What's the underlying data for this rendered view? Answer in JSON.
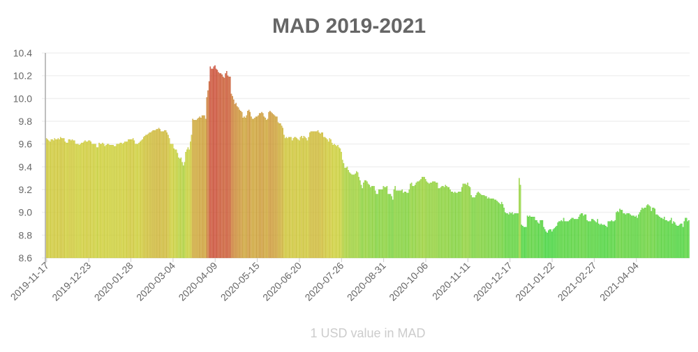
{
  "chart_data": {
    "type": "bar",
    "title": "MAD 2019-2021",
    "xlabel": "1 USD value in MAD",
    "ylabel": "",
    "ylim": [
      8.6,
      10.4
    ],
    "yticks": [
      "8.6",
      "8.8",
      "9.0",
      "9.2",
      "9.4",
      "9.6",
      "9.8",
      "10.0",
      "10.2",
      "10.4"
    ],
    "xtick_labels": [
      "2019-11-17",
      "2019-12-23",
      "2020-01-28",
      "2020-03-04",
      "2020-04-09",
      "2020-05-15",
      "2020-06-20",
      "2020-07-26",
      "2020-08-31",
      "2020-10-06",
      "2020-11-11",
      "2020-12-17",
      "2021-01-22",
      "2021-02-27",
      "2021-04-04"
    ],
    "xtick_every_bars": 36,
    "grid": true,
    "legend": "none",
    "colors": {
      "low": "#3ddc3d",
      "high": "#d9432b",
      "title": "#666666",
      "axis_title": "#cccccc"
    },
    "values": [
      9.65,
      9.64,
      9.63,
      9.62,
      9.64,
      9.64,
      9.63,
      9.65,
      9.64,
      9.64,
      9.65,
      9.64,
      9.66,
      9.65,
      9.65,
      9.65,
      9.62,
      9.61,
      9.61,
      9.64,
      9.64,
      9.63,
      9.64,
      9.63,
      9.63,
      9.6,
      9.6,
      9.6,
      9.59,
      9.6,
      9.61,
      9.61,
      9.62,
      9.63,
      9.62,
      9.62,
      9.63,
      9.63,
      9.62,
      9.6,
      9.6,
      9.6,
      9.6,
      9.57,
      9.57,
      9.61,
      9.6,
      9.6,
      9.61,
      9.6,
      9.58,
      9.59,
      9.6,
      9.6,
      9.59,
      9.59,
      9.59,
      9.59,
      9.58,
      9.58,
      9.6,
      9.6,
      9.6,
      9.61,
      9.61,
      9.6,
      9.61,
      9.62,
      9.62,
      9.62,
      9.64,
      9.64,
      9.64,
      9.64,
      9.65,
      9.63,
      9.6,
      9.6,
      9.6,
      9.61,
      9.62,
      9.63,
      9.64,
      9.66,
      9.67,
      9.68,
      9.68,
      9.69,
      9.7,
      9.7,
      9.71,
      9.72,
      9.72,
      9.72,
      9.73,
      9.73,
      9.74,
      9.73,
      9.71,
      9.71,
      9.71,
      9.72,
      9.72,
      9.7,
      9.68,
      9.65,
      9.6,
      9.6,
      9.6,
      9.56,
      9.55,
      9.55,
      9.52,
      9.48,
      9.47,
      9.48,
      9.44,
      9.41,
      9.44,
      9.53,
      9.55,
      9.57,
      9.55,
      9.62,
      9.68,
      9.82,
      9.81,
      9.81,
      9.81,
      9.82,
      9.83,
      9.84,
      9.83,
      9.85,
      9.85,
      9.85,
      9.82,
      10.01,
      10.07,
      10.15,
      10.28,
      10.26,
      10.26,
      10.28,
      10.29,
      10.26,
      10.25,
      10.23,
      10.22,
      10.22,
      10.21,
      10.19,
      10.18,
      10.22,
      10.24,
      10.2,
      10.19,
      10.19,
      10.04,
      10.02,
      9.99,
      9.95,
      9.96,
      9.93,
      9.92,
      9.9,
      9.89,
      9.88,
      9.83,
      9.84,
      9.83,
      9.85,
      9.89,
      9.9,
      9.88,
      9.84,
      9.82,
      9.82,
      9.83,
      9.84,
      9.84,
      9.85,
      9.87,
      9.87,
      9.88,
      9.87,
      9.84,
      9.83,
      9.81,
      9.82,
      9.88,
      9.89,
      9.88,
      9.87,
      9.86,
      9.85,
      9.84,
      9.84,
      9.79,
      9.78,
      9.78,
      9.76,
      9.74,
      9.68,
      9.65,
      9.66,
      9.65,
      9.66,
      9.66,
      9.66,
      9.63,
      9.65,
      9.66,
      9.66,
      9.65,
      9.64,
      9.63,
      9.66,
      9.67,
      9.65,
      9.67,
      9.66,
      9.65,
      9.63,
      9.66,
      9.7,
      9.71,
      9.71,
      9.71,
      9.71,
      9.71,
      9.71,
      9.72,
      9.7,
      9.69,
      9.7,
      9.7,
      9.66,
      9.66,
      9.65,
      9.64,
      9.62,
      9.65,
      9.64,
      9.61,
      9.59,
      9.6,
      9.59,
      9.58,
      9.59,
      9.57,
      9.56,
      9.53,
      9.46,
      9.43,
      9.39,
      9.39,
      9.4,
      9.37,
      9.35,
      9.34,
      9.33,
      9.33,
      9.33,
      9.34,
      9.36,
      9.35,
      9.31,
      9.28,
      9.24,
      9.21,
      9.26,
      9.28,
      9.28,
      9.27,
      9.25,
      9.24,
      9.22,
      9.23,
      9.23,
      9.23,
      9.19,
      9.16,
      9.16,
      9.2,
      9.2,
      9.2,
      9.2,
      9.23,
      9.22,
      9.22,
      9.23,
      9.16,
      9.16,
      9.16,
      9.14,
      9.11,
      9.2,
      9.23,
      9.19,
      9.19,
      9.19,
      9.19,
      9.19,
      9.2,
      9.17,
      9.18,
      9.18,
      9.17,
      9.17,
      9.2,
      9.25,
      9.26,
      9.23,
      9.23,
      9.24,
      9.26,
      9.27,
      9.27,
      9.28,
      9.29,
      9.31,
      9.31,
      9.31,
      9.29,
      9.27,
      9.26,
      9.25,
      9.26,
      9.26,
      9.27,
      9.27,
      9.27,
      9.26,
      9.26,
      9.21,
      9.21,
      9.22,
      9.23,
      9.23,
      9.22,
      9.24,
      9.23,
      9.22,
      9.22,
      9.2,
      9.18,
      9.18,
      9.17,
      9.18,
      9.17,
      9.17,
      9.18,
      9.18,
      9.18,
      9.22,
      9.25,
      9.25,
      9.25,
      9.24,
      9.26,
      9.23,
      9.22,
      9.15,
      9.13,
      9.13,
      9.13,
      9.15,
      9.17,
      9.18,
      9.17,
      9.16,
      9.15,
      9.15,
      9.15,
      9.14,
      9.14,
      9.12,
      9.13,
      9.12,
      9.12,
      9.12,
      9.12,
      9.11,
      9.11,
      9.1,
      9.09,
      9.08,
      9.07,
      9.09,
      9.07,
      9.04,
      9.0,
      8.99,
      8.99,
      8.98,
      9.0,
      8.99,
      9.0,
      8.98,
      8.99,
      8.99,
      8.99,
      8.99,
      9.3,
      9.24,
      8.89,
      8.88,
      8.87,
      8.87,
      8.87,
      8.97,
      8.96,
      8.97,
      8.96,
      8.96,
      8.96,
      8.96,
      8.93,
      8.93,
      8.91,
      8.9,
      8.93,
      8.93,
      8.93,
      8.87,
      8.85,
      8.83,
      8.82,
      8.84,
      8.85,
      8.85,
      8.83,
      8.85,
      8.86,
      8.87,
      8.88,
      8.91,
      8.92,
      8.92,
      8.93,
      8.92,
      8.95,
      8.92,
      8.92,
      8.92,
      8.92,
      8.93,
      8.94,
      8.95,
      8.95,
      8.94,
      8.94,
      8.94,
      8.94,
      8.96,
      8.98,
      8.99,
      8.99,
      8.97,
      8.98,
      8.98,
      8.93,
      8.92,
      8.92,
      8.92,
      8.94,
      8.94,
      8.93,
      8.92,
      8.91,
      8.94,
      8.9,
      8.89,
      8.9,
      8.89,
      8.89,
      8.89,
      8.88,
      8.87,
      8.92,
      8.92,
      8.92,
      8.93,
      8.92,
      8.92,
      8.93,
      9.0,
      9.01,
      9.0,
      9.03,
      9.02,
      9.02,
      8.99,
      8.99,
      8.98,
      8.99,
      8.99,
      8.99,
      8.98,
      8.97,
      8.97,
      8.97,
      8.96,
      8.97,
      8.95,
      8.98,
      9.0,
      9.02,
      9.04,
      9.03,
      9.04,
      9.04,
      9.06,
      9.07,
      9.06,
      9.05,
      9.01,
      9.04,
      9.04,
      9.03,
      8.98,
      8.98,
      8.97,
      8.96,
      8.95,
      8.95,
      8.94,
      8.96,
      8.93,
      8.93,
      8.92,
      8.92,
      8.93,
      8.95,
      8.9,
      8.92,
      8.91,
      8.89,
      8.88,
      8.88,
      8.89,
      8.9,
      8.9,
      8.87,
      8.92,
      8.95,
      8.95,
      8.92,
      8.93
    ]
  }
}
